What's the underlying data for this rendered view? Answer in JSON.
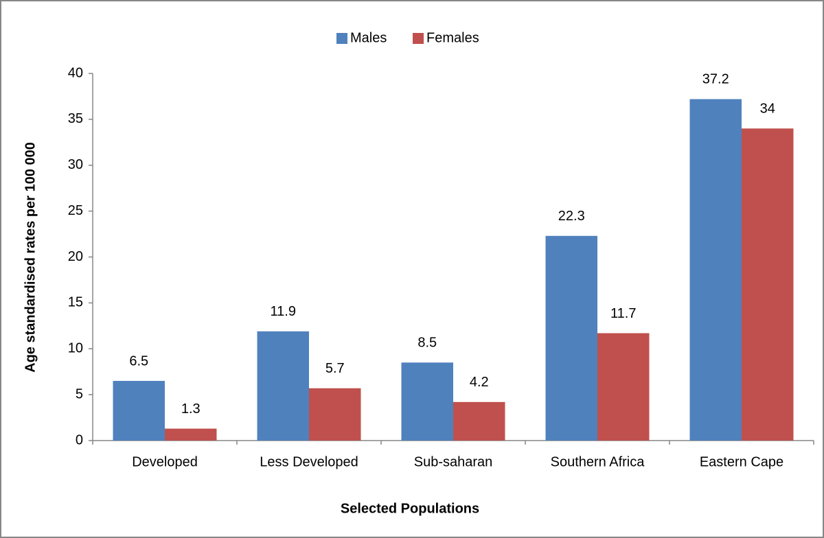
{
  "chart_data": {
    "type": "bar",
    "x_label": "Selected Populations",
    "y_label": "Age standardised rates per 100 000",
    "categories": [
      "Developed",
      "Less Developed",
      "Sub-saharan",
      "Southern Africa",
      "Eastern Cape"
    ],
    "series": [
      {
        "name": "Males",
        "color": "#4f81bd",
        "values": [
          6.5,
          11.9,
          8.5,
          22.3,
          37.2
        ]
      },
      {
        "name": "Females",
        "color": "#c0504d",
        "values": [
          1.3,
          5.7,
          4.2,
          11.7,
          34
        ]
      }
    ],
    "ylim": [
      0,
      40
    ],
    "yticks": [
      0,
      5,
      10,
      15,
      20,
      25,
      30,
      35,
      40
    ],
    "grid": false,
    "legend": "top"
  }
}
